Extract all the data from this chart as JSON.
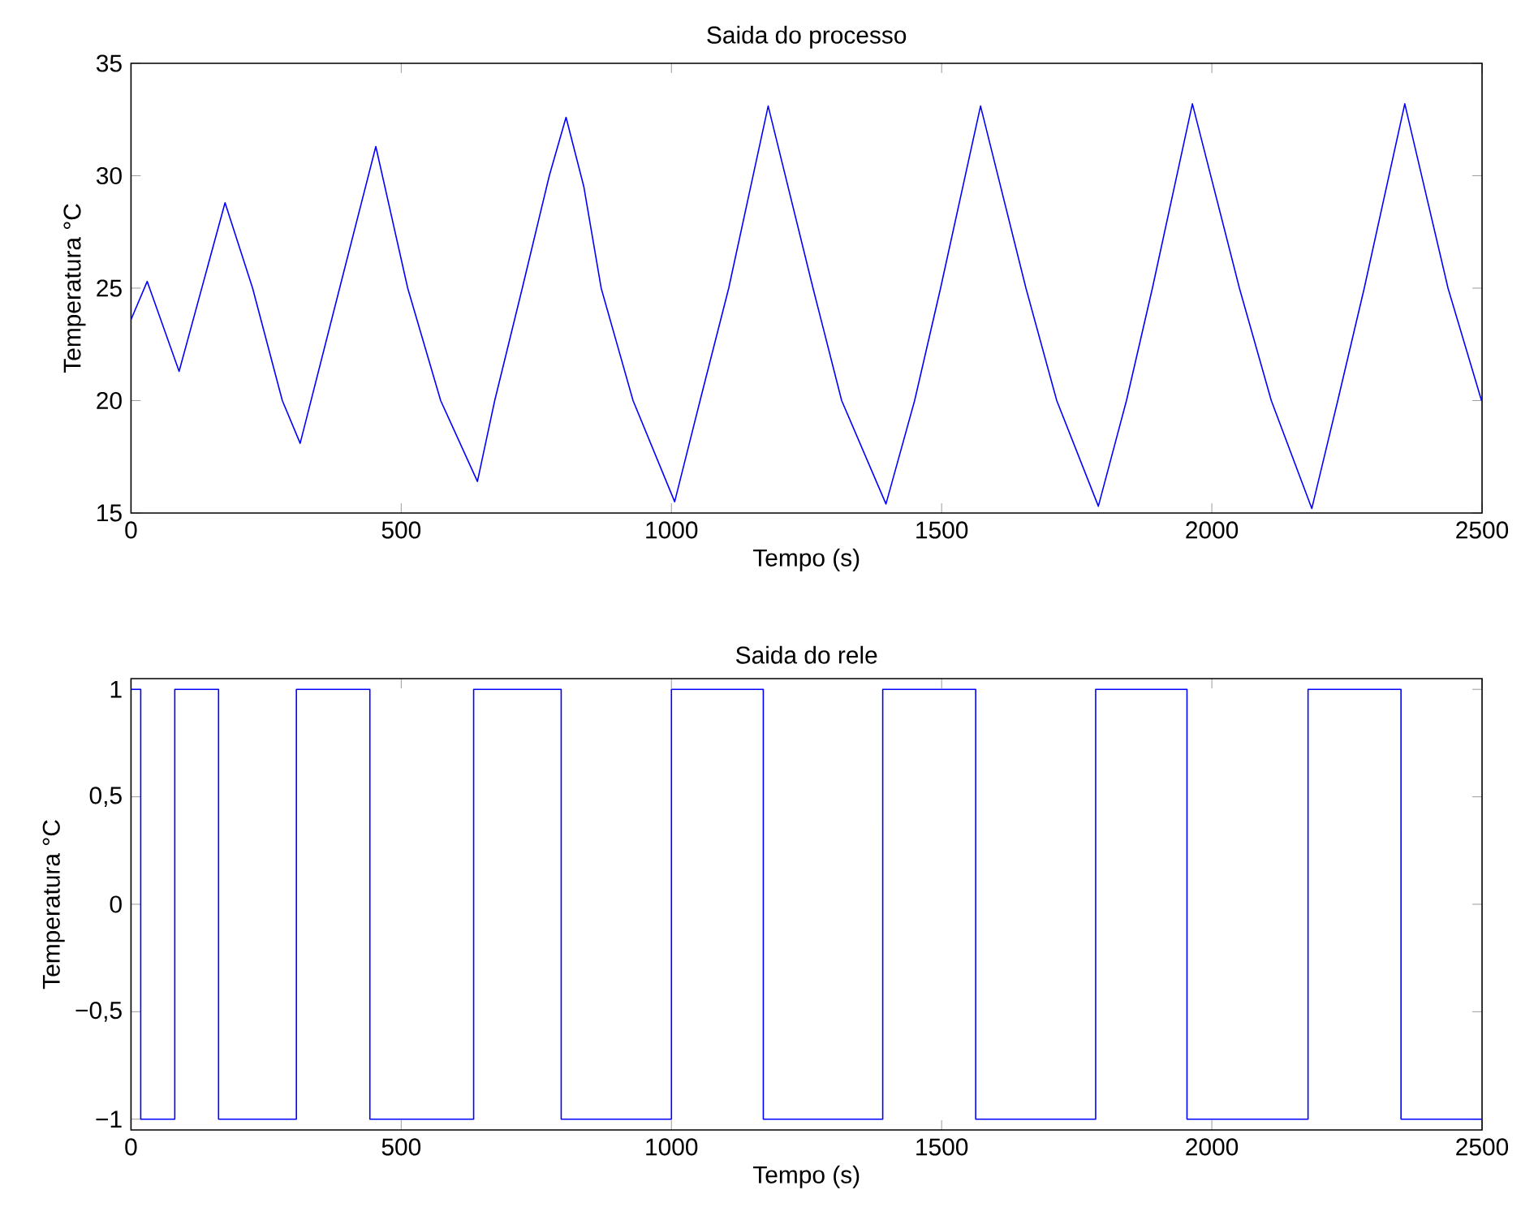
{
  "chart_data": [
    {
      "type": "line",
      "title": "Saida do processo",
      "xlabel": "Tempo (s)",
      "ylabel": "Temperatura °C",
      "x": [
        0,
        30,
        89,
        174,
        225,
        280,
        313,
        386,
        453,
        512,
        573,
        641,
        673,
        724,
        774,
        805,
        838,
        870,
        929,
        1006,
        1053,
        1106,
        1179,
        1262,
        1315,
        1397,
        1450,
        1498,
        1572,
        1656,
        1713,
        1790,
        1842,
        1890,
        1964,
        2051,
        2110,
        2185,
        2233,
        2282,
        2357,
        2437,
        2499
      ],
      "series": [
        {
          "color": "#0000ff",
          "values": [
            23.6,
            25.3,
            21.3,
            28.8,
            25,
            20,
            18.1,
            25,
            31.3,
            25,
            20,
            16.4,
            20,
            25,
            30,
            32.6,
            29.5,
            25,
            20,
            15.5,
            20,
            25,
            33.1,
            25,
            20,
            15.4,
            20,
            25,
            33.1,
            25,
            20,
            15.3,
            20,
            25,
            33.2,
            25,
            20,
            15.2,
            20,
            25,
            33.2,
            25,
            20
          ]
        }
      ],
      "xlim": [
        0,
        2500
      ],
      "ylim": [
        15,
        35
      ],
      "xticks": [
        0,
        500,
        1000,
        1500,
        2000,
        2500
      ],
      "yticks": [
        15,
        20,
        25,
        30,
        35
      ]
    },
    {
      "type": "step",
      "title": "Saida do rele",
      "xlabel": "Tempo (s)",
      "ylabel": "Temperatura °C",
      "x": [
        0,
        18,
        81,
        162,
        306,
        442,
        634,
        796,
        1000,
        1170,
        1391,
        1563,
        1785,
        1954,
        2178,
        2350,
        2500
      ],
      "series": [
        {
          "color": "#0000ff",
          "values": [
            1,
            -1,
            1,
            -1,
            1,
            -1,
            1,
            -1,
            1,
            -1,
            1,
            -1,
            1,
            -1,
            1,
            -1,
            -1
          ]
        }
      ],
      "xlim": [
        0,
        2500
      ],
      "ylim": [
        -1.05,
        1.05
      ],
      "xticks": [
        0,
        500,
        1000,
        1500,
        2000,
        2500
      ],
      "yticks": [
        {
          "value": -1,
          "label": "−1"
        },
        {
          "value": -0.5,
          "label": "−0,5"
        },
        {
          "value": 0,
          "label": "0"
        },
        {
          "value": 0.5,
          "label": "0,5"
        },
        {
          "value": 1,
          "label": "1"
        }
      ]
    }
  ]
}
